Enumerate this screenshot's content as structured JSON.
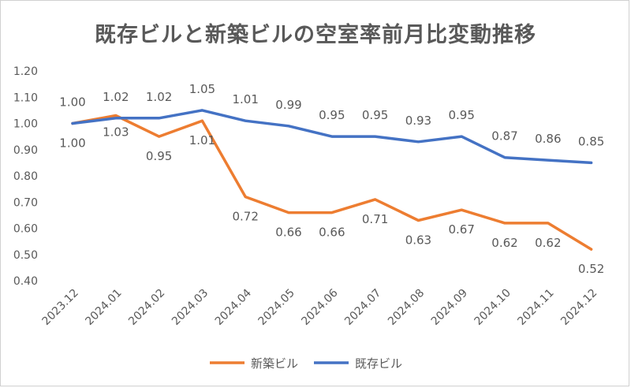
{
  "chart_data": {
    "type": "line",
    "title": "既存ビルと新築ビルの空室率前月比変動推移",
    "xlabel": "",
    "ylabel": "",
    "x": [
      "2023.12",
      "2024.01",
      "2024.02",
      "2024.03",
      "2024.04",
      "2024.05",
      "2024.06",
      "2024.07",
      "2024.08",
      "2024.09",
      "2024.10",
      "2024.11",
      "2024.12"
    ],
    "ylim": [
      0.4,
      1.2
    ],
    "yticks": [
      "0.40",
      "0.50",
      "0.60",
      "0.70",
      "0.80",
      "0.90",
      "1.00",
      "1.10",
      "1.20"
    ],
    "grid": false,
    "legend_position": "bottom",
    "series": [
      {
        "name": "新築ビル",
        "color": "#ED7D31",
        "values": [
          1.0,
          1.03,
          0.95,
          1.01,
          0.72,
          0.66,
          0.66,
          0.71,
          0.63,
          0.67,
          0.62,
          0.62,
          0.52
        ],
        "labels": [
          "1.00",
          "1.03",
          "0.95",
          "1.01",
          "0.72",
          "0.66",
          "0.66",
          "0.71",
          "0.63",
          "0.67",
          "0.62",
          "0.62",
          "0.52"
        ]
      },
      {
        "name": "既存ビル",
        "color": "#4472C4",
        "values": [
          1.0,
          1.02,
          1.02,
          1.05,
          1.01,
          0.99,
          0.95,
          0.95,
          0.93,
          0.95,
          0.87,
          0.86,
          0.85
        ],
        "labels": [
          "1.00",
          "1.02",
          "1.02",
          "1.05",
          "1.01",
          "0.99",
          "0.95",
          "0.95",
          "0.93",
          "0.95",
          "0.87",
          "0.86",
          "0.85"
        ]
      }
    ]
  }
}
